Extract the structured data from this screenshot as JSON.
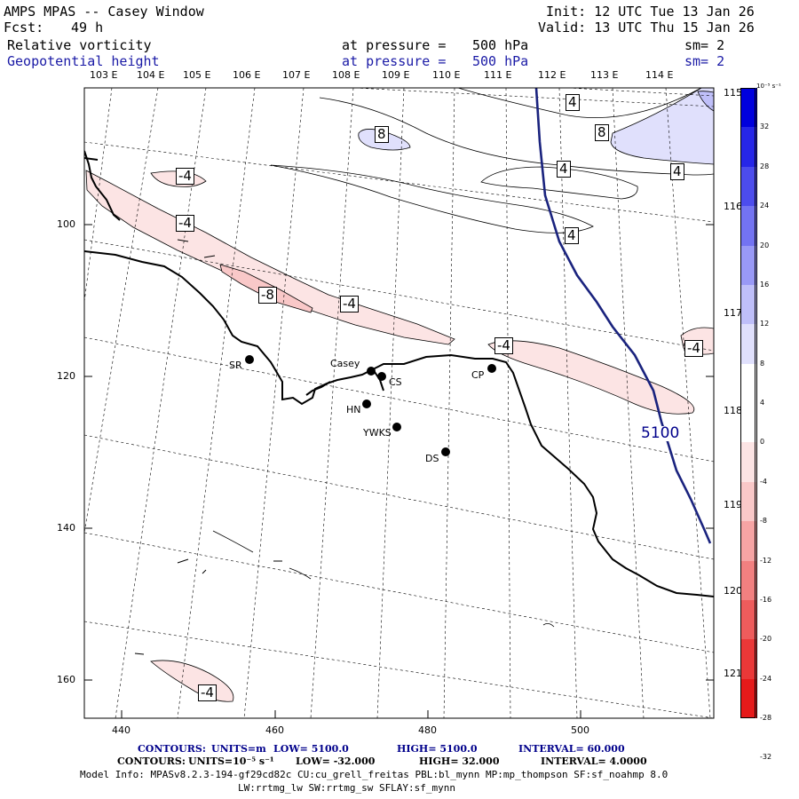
{
  "header": {
    "title": "AMPS MPAS -- Casey Window",
    "fcst_label": "Fcst:",
    "fcst_value": "49 h",
    "init": "Init: 12 UTC Tue 13 Jan 26",
    "valid": "Valid: 13 UTC Thu 15 Jan 26"
  },
  "fields": [
    {
      "name": "Relative vorticity",
      "at": "at pressure =",
      "level": "500 hPa",
      "sm": "sm= 2"
    },
    {
      "name": "Geopotential height",
      "at": "at pressure =",
      "level": "500 hPa",
      "sm": "sm= 2"
    }
  ],
  "lon_top": [
    "103 E",
    "104 E",
    "105 E",
    "106 E",
    "107 E",
    "108 E",
    "109 E",
    "110 E",
    "111 E",
    "112 E",
    "113 E",
    "114 E"
  ],
  "lon_right": [
    "115 E",
    "116 E",
    "117 E",
    "118 E",
    "119 E",
    "120 E",
    "121 E"
  ],
  "x_ticks": [
    "440",
    "460",
    "480",
    "500"
  ],
  "y_ticks": [
    "100",
    "120",
    "140",
    "160"
  ],
  "colorbar": {
    "unit": "10⁻⁵ s⁻¹",
    "labels": [
      "32",
      "28",
      "24",
      "20",
      "16",
      "12",
      "8",
      "4",
      "0",
      "-4",
      "-8",
      "-12",
      "-16",
      "-20",
      "-24",
      "-28",
      "-32"
    ],
    "colors": [
      "#0000dd",
      "#2626e8",
      "#4c4ced",
      "#7373f2",
      "#9999f6",
      "#bfbff9",
      "#e0e0fc",
      "#ffffff",
      "#ffffff",
      "#fce4e4",
      "#f9c8c8",
      "#f6a4a4",
      "#f28080",
      "#ee5c5c",
      "#ea3838",
      "#e61a1a"
    ]
  },
  "stations": [
    {
      "name": "SR"
    },
    {
      "name": "Casey"
    },
    {
      "name": "CS"
    },
    {
      "name": "HN"
    },
    {
      "name": "YWKS"
    },
    {
      "name": "DS"
    },
    {
      "name": "CP"
    }
  ],
  "contour_labels": {
    "vort": [
      "-4",
      "-4",
      "-8",
      "-4",
      "-4",
      "-4",
      "-4",
      "4",
      "8",
      "8",
      "4",
      "4",
      "4"
    ],
    "height": "5100"
  },
  "footer": {
    "line1": {
      "label": "CONTOURS:",
      "units": "UNITS=m",
      "low": "LOW=  5100.0",
      "high": "HIGH=  5100.0",
      "interval": "INTERVAL=   60.000"
    },
    "line2": {
      "label": "CONTOURS:",
      "units": "UNITS=10⁻⁵ s⁻¹",
      "low": "LOW= -32.000",
      "high": "HIGH=  32.000",
      "interval": "INTERVAL=   4.0000"
    },
    "model_info": "Model Info: MPASv8.2.3-194-gf29cd82c CU:cu_grell_freitas PBL:bl_mynn MP:mp_thompson SF:sf_noahmp 8.0",
    "model_info2": "LW:rrtmg_lw SW:rrtmg_sw SFLAY:sf_mynn"
  }
}
